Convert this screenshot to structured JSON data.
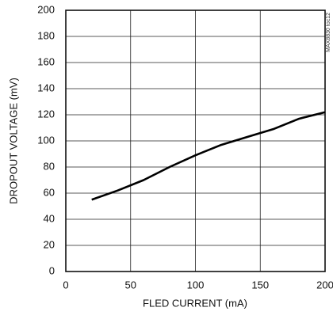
{
  "chart_data": {
    "type": "line",
    "x_label": "FLED CURRENT (mA)",
    "y_label": "DROPOUT VOLTAGE (mV)",
    "annotation": "MAX8830 toc12",
    "x": [
      20,
      40,
      60,
      80,
      100,
      120,
      130,
      140,
      160,
      180,
      200
    ],
    "series": [
      {
        "color": "#000000",
        "values": [
          55,
          62,
          70,
          80,
          89,
          97,
          100,
          103,
          109,
          117,
          122
        ]
      }
    ],
    "xlim": [
      0,
      200
    ],
    "xticks": [
      0,
      50,
      100,
      150,
      200
    ],
    "ylim": [
      0,
      200
    ],
    "yticks": [
      0,
      20,
      40,
      60,
      80,
      100,
      120,
      140,
      160,
      180,
      200
    ],
    "grid": true
  }
}
